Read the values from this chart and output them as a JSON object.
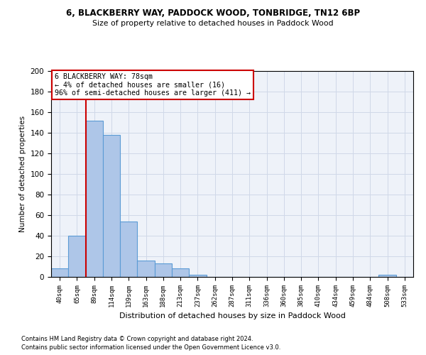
{
  "title1": "6, BLACKBERRY WAY, PADDOCK WOOD, TONBRIDGE, TN12 6BP",
  "title2": "Size of property relative to detached houses in Paddock Wood",
  "xlabel": "Distribution of detached houses by size in Paddock Wood",
  "ylabel": "Number of detached properties",
  "bar_color": "#aec6e8",
  "bar_edge_color": "#5b9bd5",
  "categories": [
    "40sqm",
    "65sqm",
    "89sqm",
    "114sqm",
    "139sqm",
    "163sqm",
    "188sqm",
    "213sqm",
    "237sqm",
    "262sqm",
    "287sqm",
    "311sqm",
    "336sqm",
    "360sqm",
    "385sqm",
    "410sqm",
    "434sqm",
    "459sqm",
    "484sqm",
    "508sqm",
    "533sqm"
  ],
  "values": [
    8,
    40,
    152,
    138,
    54,
    16,
    13,
    8,
    2,
    0,
    0,
    0,
    0,
    0,
    0,
    0,
    0,
    0,
    0,
    2,
    0
  ],
  "ylim": [
    0,
    200
  ],
  "yticks": [
    0,
    20,
    40,
    60,
    80,
    100,
    120,
    140,
    160,
    180,
    200
  ],
  "vline_x": 1.5,
  "annotation_text": "6 BLACKBERRY WAY: 78sqm\n← 4% of detached houses are smaller (16)\n96% of semi-detached houses are larger (411) →",
  "annotation_box_color": "#ffffff",
  "annotation_box_edge": "#cc0000",
  "vline_color": "#cc0000",
  "grid_color": "#d0d8e8",
  "background_color": "#eef2f9",
  "footnote1": "Contains HM Land Registry data © Crown copyright and database right 2024.",
  "footnote2": "Contains public sector information licensed under the Open Government Licence v3.0."
}
